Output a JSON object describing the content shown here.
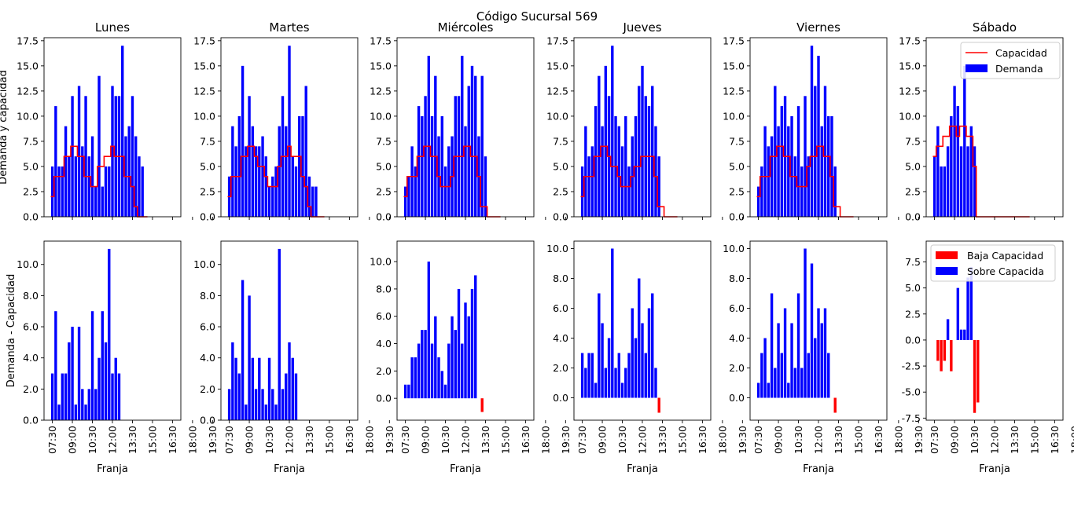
{
  "figure": {
    "suptitle": "Código Sucursal 569",
    "top_ylabel": "Demanda y capacidad",
    "bottom_ylabel": "Demanda - Capacidad",
    "xlabel": "Franja",
    "x_ticks": [
      "07:30",
      "09:00",
      "10:30",
      "12:00",
      "13:30",
      "15:00",
      "16:30",
      "18:00",
      "19:30"
    ],
    "legend_top": {
      "capacity": "Capacidad",
      "demand": "Demanda"
    },
    "legend_bottom": {
      "low": "Baja Capacidad",
      "over": "Sobre Capacida"
    },
    "colors": {
      "demand": "#0000ff",
      "capacity": "#ff0000",
      "low": "#ff0000",
      "over": "#0000ff"
    }
  },
  "chart_data": [
    {
      "type": "bar",
      "title": "Lunes",
      "row": "top",
      "series": "demand",
      "x_start": "07:30",
      "x_step_min": 15,
      "ylim": [
        0,
        17.8
      ],
      "yticks": [
        0,
        2.5,
        5,
        7.5,
        10,
        12.5,
        15,
        17.5
      ],
      "values": [
        5,
        11,
        5,
        5,
        9,
        6,
        12,
        6,
        13,
        7,
        12,
        6,
        8,
        3,
        14,
        3,
        5,
        5,
        13,
        12,
        12,
        17,
        8,
        9,
        12,
        8,
        6,
        5
      ]
    },
    {
      "type": "line",
      "title": "Lunes",
      "row": "top",
      "series": "capacity",
      "x_start": "07:30",
      "x_step_min": 15,
      "values": [
        2,
        4,
        4,
        4,
        6,
        6,
        7,
        7,
        6,
        6,
        4,
        4,
        3,
        3,
        5,
        5,
        6,
        6,
        7,
        6,
        6,
        6,
        4,
        4,
        3,
        1,
        0,
        0,
        0
      ]
    },
    {
      "type": "bar",
      "title": "Martes",
      "row": "top",
      "series": "demand",
      "x_start": "07:30",
      "x_step_min": 15,
      "ylim": [
        0,
        17.8
      ],
      "yticks": [
        0,
        2.5,
        5,
        7.5,
        10,
        12.5,
        15,
        17.5
      ],
      "values": [
        4,
        9,
        7,
        10,
        15,
        7,
        12,
        9,
        7,
        7,
        8,
        6,
        3,
        4,
        5,
        9,
        12,
        9,
        17,
        6,
        5,
        10,
        10,
        13,
        4,
        3,
        3,
        0
      ]
    },
    {
      "type": "line",
      "title": "Martes",
      "row": "top",
      "series": "capacity",
      "x_start": "07:30",
      "x_step_min": 15,
      "values": [
        2,
        4,
        4,
        4,
        6,
        6,
        7,
        7,
        6,
        5,
        5,
        4,
        3,
        3,
        3,
        5,
        6,
        6,
        7,
        6,
        6,
        6,
        4,
        3,
        1,
        0,
        0,
        0,
        0
      ]
    },
    {
      "type": "bar",
      "title": "Miércoles",
      "row": "top",
      "series": "demand",
      "x_start": "07:30",
      "x_step_min": 15,
      "ylim": [
        0,
        17.8
      ],
      "yticks": [
        0,
        2.5,
        5,
        7.5,
        10,
        12.5,
        15,
        17.5
      ],
      "values": [
        3,
        4,
        7,
        5,
        11,
        10,
        12,
        16,
        10,
        14,
        8,
        10,
        5,
        7,
        8,
        12,
        12,
        16,
        9,
        13,
        15,
        14,
        8,
        14,
        6,
        0,
        0,
        0
      ]
    },
    {
      "type": "line",
      "title": "Miércoles",
      "row": "top",
      "series": "capacity",
      "x_start": "07:30",
      "x_step_min": 15,
      "values": [
        2,
        4,
        4,
        4,
        6,
        6,
        7,
        7,
        6,
        6,
        4,
        3,
        3,
        3,
        4,
        6,
        6,
        6,
        7,
        7,
        6,
        6,
        4,
        1,
        1,
        0,
        0,
        0,
        0
      ]
    },
    {
      "type": "bar",
      "title": "Jueves",
      "row": "top",
      "series": "demand",
      "x_start": "07:30",
      "x_step_min": 15,
      "ylim": [
        0,
        17.8
      ],
      "yticks": [
        0,
        2.5,
        5,
        7.5,
        10,
        12.5,
        15,
        17.5
      ],
      "values": [
        5,
        9,
        6,
        7,
        11,
        14,
        9,
        15,
        12,
        17,
        10,
        9,
        7,
        10,
        5,
        8,
        10,
        13,
        15,
        12,
        11,
        13,
        9,
        6,
        0,
        0,
        0,
        0
      ]
    },
    {
      "type": "line",
      "title": "Jueves",
      "row": "top",
      "series": "capacity",
      "x_start": "07:30",
      "x_step_min": 15,
      "values": [
        2,
        4,
        4,
        4,
        6,
        6,
        7,
        7,
        6,
        5,
        5,
        4,
        3,
        3,
        3,
        4,
        5,
        5,
        6,
        6,
        6,
        6,
        4,
        1,
        1,
        0,
        0,
        0,
        0
      ]
    },
    {
      "type": "bar",
      "title": "Viernes",
      "row": "top",
      "series": "demand",
      "x_start": "07:30",
      "x_step_min": 15,
      "ylim": [
        0,
        17.8
      ],
      "yticks": [
        0,
        2.5,
        5,
        7.5,
        10,
        12.5,
        15,
        17.5
      ],
      "values": [
        3,
        5,
        9,
        7,
        8,
        13,
        9,
        11,
        12,
        9,
        10,
        6,
        11,
        5,
        12,
        6,
        17,
        13,
        16,
        9,
        13,
        10,
        10,
        5,
        0,
        0,
        0,
        0
      ]
    },
    {
      "type": "line",
      "title": "Viernes",
      "row": "top",
      "series": "capacity",
      "x_start": "07:30",
      "x_step_min": 15,
      "values": [
        2,
        4,
        4,
        4,
        6,
        6,
        7,
        7,
        6,
        6,
        4,
        4,
        3,
        3,
        3,
        5,
        6,
        6,
        7,
        7,
        6,
        6,
        4,
        1,
        1,
        0,
        0,
        0,
        0
      ]
    },
    {
      "type": "bar",
      "title": "Sábado",
      "row": "top",
      "series": "demand",
      "x_start": "07:30",
      "x_step_min": 15,
      "ylim": [
        0,
        17.8
      ],
      "yticks": [
        0,
        2.5,
        5,
        7.5,
        10,
        12.5,
        15,
        17.5
      ],
      "values": [
        6,
        9,
        5,
        5,
        7,
        10,
        13,
        11,
        7,
        15,
        7,
        9,
        7,
        0,
        0,
        0,
        0,
        0,
        0,
        0,
        0,
        0,
        0,
        0,
        0,
        0,
        0,
        0
      ]
    },
    {
      "type": "line",
      "title": "Sábado",
      "row": "top",
      "series": "capacity",
      "x_start": "07:30",
      "x_step_min": 15,
      "values": [
        6,
        7,
        7,
        8,
        8,
        9,
        9,
        8,
        9,
        9,
        8,
        8,
        5,
        0,
        0,
        0,
        0,
        0,
        0,
        0,
        0,
        0,
        0,
        0,
        0,
        0,
        0,
        0,
        0
      ]
    },
    {
      "type": "bar",
      "title": "Lunes",
      "row": "bottom",
      "series": "difference",
      "x_start": "07:30",
      "x_step_min": 15,
      "ylim": [
        0,
        11.5
      ],
      "yticks": [
        0,
        2,
        4,
        6,
        8,
        10
      ],
      "values": [
        3,
        7,
        1,
        3,
        3,
        5,
        6,
        1,
        6,
        2,
        1,
        2,
        7,
        2,
        4,
        7,
        5,
        11,
        3,
        4,
        3,
        0,
        0,
        0,
        0,
        0,
        0,
        0
      ]
    },
    {
      "type": "bar",
      "title": "Martes",
      "row": "bottom",
      "series": "difference",
      "x_start": "07:30",
      "x_step_min": 15,
      "ylim": [
        0,
        11.5
      ],
      "yticks": [
        0,
        2,
        4,
        6,
        8,
        10
      ],
      "values": [
        2,
        5,
        4,
        3,
        9,
        1,
        8,
        4,
        2,
        4,
        2,
        1,
        4,
        2,
        1,
        11,
        2,
        3,
        5,
        4,
        3,
        0,
        0,
        0,
        0,
        0,
        0,
        0
      ]
    },
    {
      "type": "bar",
      "title": "Miércoles",
      "row": "bottom",
      "series": "difference",
      "x_start": "07:30",
      "x_step_min": 15,
      "ylim": [
        -1.6,
        11.5
      ],
      "yticks": [
        0,
        2,
        4,
        6,
        8,
        10
      ],
      "values": [
        1,
        1,
        3,
        3,
        4,
        5,
        5,
        10,
        4,
        6,
        3,
        2,
        1,
        4,
        6,
        5,
        8,
        4,
        7,
        6,
        8,
        9,
        0,
        -1,
        0,
        0,
        0,
        0
      ]
    },
    {
      "type": "bar",
      "title": "Jueves",
      "row": "bottom",
      "series": "difference",
      "x_start": "07:30",
      "x_step_min": 15,
      "ylim": [
        -1.5,
        10.5
      ],
      "yticks": [
        0,
        2,
        4,
        6,
        8,
        10
      ],
      "values": [
        3,
        2,
        3,
        3,
        1,
        7,
        5,
        2,
        4,
        10,
        2,
        3,
        1,
        2,
        3,
        6,
        4,
        8,
        5,
        3,
        6,
        7,
        2,
        -1,
        0,
        0,
        0,
        0
      ]
    },
    {
      "type": "bar",
      "title": "Viernes",
      "row": "bottom",
      "series": "difference",
      "x_start": "07:30",
      "x_step_min": 15,
      "ylim": [
        -1.5,
        10.5
      ],
      "yticks": [
        0,
        2,
        4,
        6,
        8,
        10
      ],
      "values": [
        1,
        3,
        4,
        1,
        7,
        2,
        5,
        3,
        6,
        1,
        5,
        2,
        7,
        2,
        10,
        3,
        9,
        4,
        6,
        5,
        6,
        3,
        0,
        -1,
        0,
        0,
        0,
        0
      ]
    },
    {
      "type": "bar",
      "title": "Sábado",
      "row": "bottom",
      "series": "difference",
      "x_start": "07:30",
      "x_step_min": 15,
      "ylim": [
        -7.7,
        9.5
      ],
      "yticks": [
        -7.5,
        -5,
        -2.5,
        0,
        2.5,
        5,
        7.5
      ],
      "values": [
        0,
        -2,
        -3,
        -2,
        2,
        -3,
        0,
        5,
        1,
        1,
        6,
        7,
        -7,
        -6,
        0,
        0,
        0,
        0,
        0,
        0,
        0,
        0,
        0,
        0,
        0,
        0,
        0,
        0
      ]
    }
  ]
}
